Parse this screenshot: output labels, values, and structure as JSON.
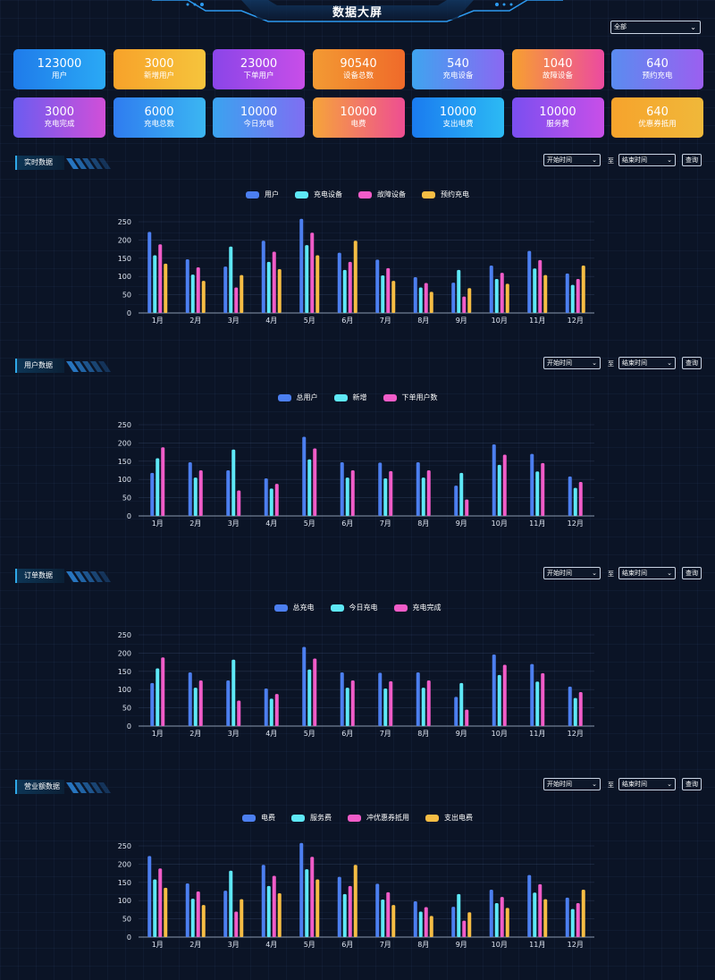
{
  "header": {
    "title": "数据大屏"
  },
  "filter": {
    "selected": "全部"
  },
  "cards": [
    {
      "value": "123000",
      "label": "用户",
      "grad": [
        "#1f7bea",
        "#2aa9f5"
      ]
    },
    {
      "value": "3000",
      "label": "新增用户",
      "grad": [
        "#f7a22a",
        "#f6c43c"
      ]
    },
    {
      "value": "23000",
      "label": "下单用户",
      "grad": [
        "#8a45e8",
        "#c84ee8"
      ]
    },
    {
      "value": "90540",
      "label": "设备总数",
      "grad": [
        "#f39a33",
        "#ef6a2a"
      ]
    },
    {
      "value": "540",
      "label": "充电设备",
      "grad": [
        "#3fa4f0",
        "#8a68f2"
      ]
    },
    {
      "value": "1040",
      "label": "故障设备",
      "grad": [
        "#f7a030",
        "#ec4aa0"
      ]
    },
    {
      "value": "640",
      "label": "预约充电",
      "grad": [
        "#5a8cf0",
        "#9b5ff0"
      ]
    },
    {
      "value": "3000",
      "label": "充电完成",
      "grad": [
        "#6b5cf0",
        "#d14fd8"
      ]
    },
    {
      "value": "6000",
      "label": "充电总数",
      "grad": [
        "#2f7cf0",
        "#3bb6f2"
      ]
    },
    {
      "value": "10000",
      "label": "今日充电",
      "grad": [
        "#3aa3f0",
        "#7f6ef2"
      ]
    },
    {
      "value": "10000",
      "label": "电费",
      "grad": [
        "#f6a43a",
        "#ee4e92"
      ]
    },
    {
      "value": "10000",
      "label": "支出电费",
      "grad": [
        "#1a7bf0",
        "#2cbaf4"
      ]
    },
    {
      "value": "10000",
      "label": "服务费",
      "grad": [
        "#7a4ff0",
        "#c84fe8"
      ]
    },
    {
      "value": "640",
      "label": "优惠券抵用",
      "grad": [
        "#f6a32c",
        "#f0b83a"
      ]
    }
  ],
  "controls": {
    "start": "开始时间",
    "end": "结束时间",
    "to": "至",
    "query": "查询"
  },
  "sections": [
    {
      "title": "实时数据"
    },
    {
      "title": "用户数据"
    },
    {
      "title": "订单数据"
    },
    {
      "title": "营业额数据"
    }
  ],
  "chart_data": [
    {
      "type": "bar",
      "title": "实时数据",
      "categories": [
        "1月",
        "2月",
        "3月",
        "4月",
        "5月",
        "6月",
        "7月",
        "8月",
        "9月",
        "10月",
        "11月",
        "12月"
      ],
      "ylim": [
        0,
        250
      ],
      "yticks": [
        0,
        50,
        100,
        150,
        200,
        250
      ],
      "series": [
        {
          "name": "用户",
          "color": "#4c7ff0",
          "values": [
            222,
            147,
            127,
            198,
            258,
            165,
            146,
            98,
            83,
            130,
            170,
            108
          ]
        },
        {
          "name": "充电设备",
          "color": "#5ee8f6",
          "values": [
            158,
            105,
            182,
            140,
            186,
            118,
            103,
            70,
            118,
            93,
            122,
            77
          ]
        },
        {
          "name": "故障设备",
          "color": "#f15cc8",
          "values": [
            188,
            125,
            70,
            168,
            220,
            140,
            123,
            82,
            45,
            110,
            145,
            93
          ]
        },
        {
          "name": "预约充电",
          "color": "#f6bd44",
          "values": [
            135,
            88,
            104,
            120,
            158,
            198,
            88,
            58,
            68,
            80,
            104,
            130
          ]
        }
      ]
    },
    {
      "type": "bar",
      "title": "用户数据",
      "categories": [
        "1月",
        "2月",
        "3月",
        "4月",
        "5月",
        "6月",
        "7月",
        "8月",
        "9月",
        "10月",
        "11月",
        "12月"
      ],
      "ylim": [
        0,
        250
      ],
      "yticks": [
        0,
        50,
        100,
        150,
        200,
        250
      ],
      "series": [
        {
          "name": "总用户",
          "color": "#4c7ff0",
          "values": [
            118,
            147,
            125,
            103,
            217,
            147,
            146,
            147,
            83,
            196,
            170,
            108
          ]
        },
        {
          "name": "新增",
          "color": "#5ee8f6",
          "values": [
            158,
            105,
            182,
            75,
            155,
            105,
            103,
            105,
            118,
            140,
            122,
            77
          ]
        },
        {
          "name": "下单用户数",
          "color": "#f15cc8",
          "values": [
            188,
            125,
            70,
            88,
            185,
            125,
            123,
            125,
            45,
            168,
            145,
            93
          ]
        }
      ]
    },
    {
      "type": "bar",
      "title": "订单数据",
      "categories": [
        "1月",
        "2月",
        "3月",
        "4月",
        "5月",
        "6月",
        "7月",
        "8月",
        "9月",
        "10月",
        "11月",
        "12月"
      ],
      "ylim": [
        0,
        250
      ],
      "yticks": [
        0,
        50,
        100,
        150,
        200,
        250
      ],
      "series": [
        {
          "name": "总充电",
          "color": "#4c7ff0",
          "values": [
            118,
            147,
            125,
            103,
            217,
            147,
            146,
            147,
            80,
            196,
            170,
            108
          ]
        },
        {
          "name": "今日充电",
          "color": "#5ee8f6",
          "values": [
            158,
            105,
            182,
            75,
            155,
            105,
            103,
            105,
            118,
            140,
            122,
            77
          ]
        },
        {
          "name": "充电完成",
          "color": "#f15cc8",
          "values": [
            188,
            125,
            70,
            88,
            185,
            125,
            123,
            125,
            45,
            168,
            145,
            93
          ]
        }
      ]
    },
    {
      "type": "bar",
      "title": "营业额数据",
      "categories": [
        "1月",
        "2月",
        "3月",
        "4月",
        "5月",
        "6月",
        "7月",
        "8月",
        "9月",
        "10月",
        "11月",
        "12月"
      ],
      "ylim": [
        0,
        250
      ],
      "yticks": [
        0,
        50,
        100,
        150,
        200,
        250
      ],
      "series": [
        {
          "name": "电费",
          "color": "#4c7ff0",
          "values": [
            222,
            147,
            127,
            198,
            258,
            165,
            146,
            98,
            83,
            130,
            170,
            108
          ]
        },
        {
          "name": "服务费",
          "color": "#5ee8f6",
          "values": [
            158,
            105,
            182,
            140,
            186,
            118,
            103,
            70,
            118,
            93,
            122,
            77
          ]
        },
        {
          "name": "冲优惠券抵用",
          "color": "#f15cc8",
          "values": [
            188,
            125,
            70,
            168,
            220,
            140,
            123,
            82,
            45,
            110,
            145,
            93
          ]
        },
        {
          "name": "支出电费",
          "color": "#f6bd44",
          "values": [
            135,
            88,
            104,
            120,
            158,
            198,
            88,
            58,
            68,
            80,
            104,
            130
          ]
        }
      ]
    }
  ]
}
